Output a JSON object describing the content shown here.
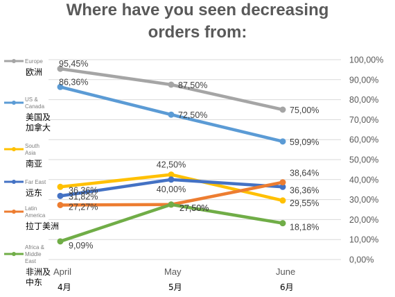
{
  "chart_data": {
    "type": "line",
    "title_lines": [
      "Where have you seen decreasing",
      "orders from:"
    ],
    "categories": [
      "April",
      "May",
      "June"
    ],
    "categories_zh": [
      "4月",
      "5月",
      "6月"
    ],
    "ylim": [
      0,
      100
    ],
    "yticks": [
      "0,00%",
      "10,00%",
      "20,00%",
      "30,00%",
      "40,00%",
      "50,00%",
      "60,00%",
      "70,00%",
      "80,00%",
      "90,00%",
      "100,00%"
    ],
    "grid": true,
    "legend_position": "left",
    "series": [
      {
        "name": "Europe",
        "name_lines": [
          "Europe"
        ],
        "zh_lines": [
          "欧洲"
        ],
        "color": "#a5a5a5",
        "values": [
          95.45,
          87.5,
          75.0
        ],
        "labels": [
          "95,45%",
          "87,50%",
          "75,00%"
        ]
      },
      {
        "name": "US & Canada",
        "name_lines": [
          "US &",
          "Canada"
        ],
        "zh_lines": [
          "美国及",
          "加拿大"
        ],
        "color": "#5b9bd5",
        "values": [
          86.36,
          72.5,
          59.09
        ],
        "labels": [
          "86,36%",
          "72,50%",
          "59,09%"
        ]
      },
      {
        "name": "South Asia",
        "name_lines": [
          "South",
          "Asia"
        ],
        "zh_lines": [
          "南亚"
        ],
        "color": "#ffc000",
        "values": [
          36.36,
          42.5,
          29.55
        ],
        "labels": [
          "36,36%",
          "42,50%",
          "29,55%"
        ]
      },
      {
        "name": "Far East",
        "name_lines": [
          "Far East"
        ],
        "zh_lines": [
          "远东"
        ],
        "color": "#4472c4",
        "values": [
          31.82,
          40.0,
          36.36
        ],
        "labels": [
          "31,82%",
          "40,00%",
          "36,36%"
        ]
      },
      {
        "name": "Latin America",
        "name_lines": [
          "Latin",
          "America"
        ],
        "zh_lines": [
          "拉丁美洲"
        ],
        "color": "#ed7d31",
        "values": [
          27.27,
          27.5,
          38.64
        ],
        "labels": [
          "27,27%",
          "27,50%",
          "38,64%"
        ]
      },
      {
        "name": "Africa & Middle East",
        "name_lines": [
          "Africa &",
          "Middle",
          "East"
        ],
        "zh_lines": [
          "非洲及",
          "中东"
        ],
        "color": "#70ad47",
        "values": [
          9.09,
          27.5,
          18.18
        ],
        "labels": [
          "9,09%",
          "27,50%",
          "18,18%"
        ]
      }
    ]
  }
}
